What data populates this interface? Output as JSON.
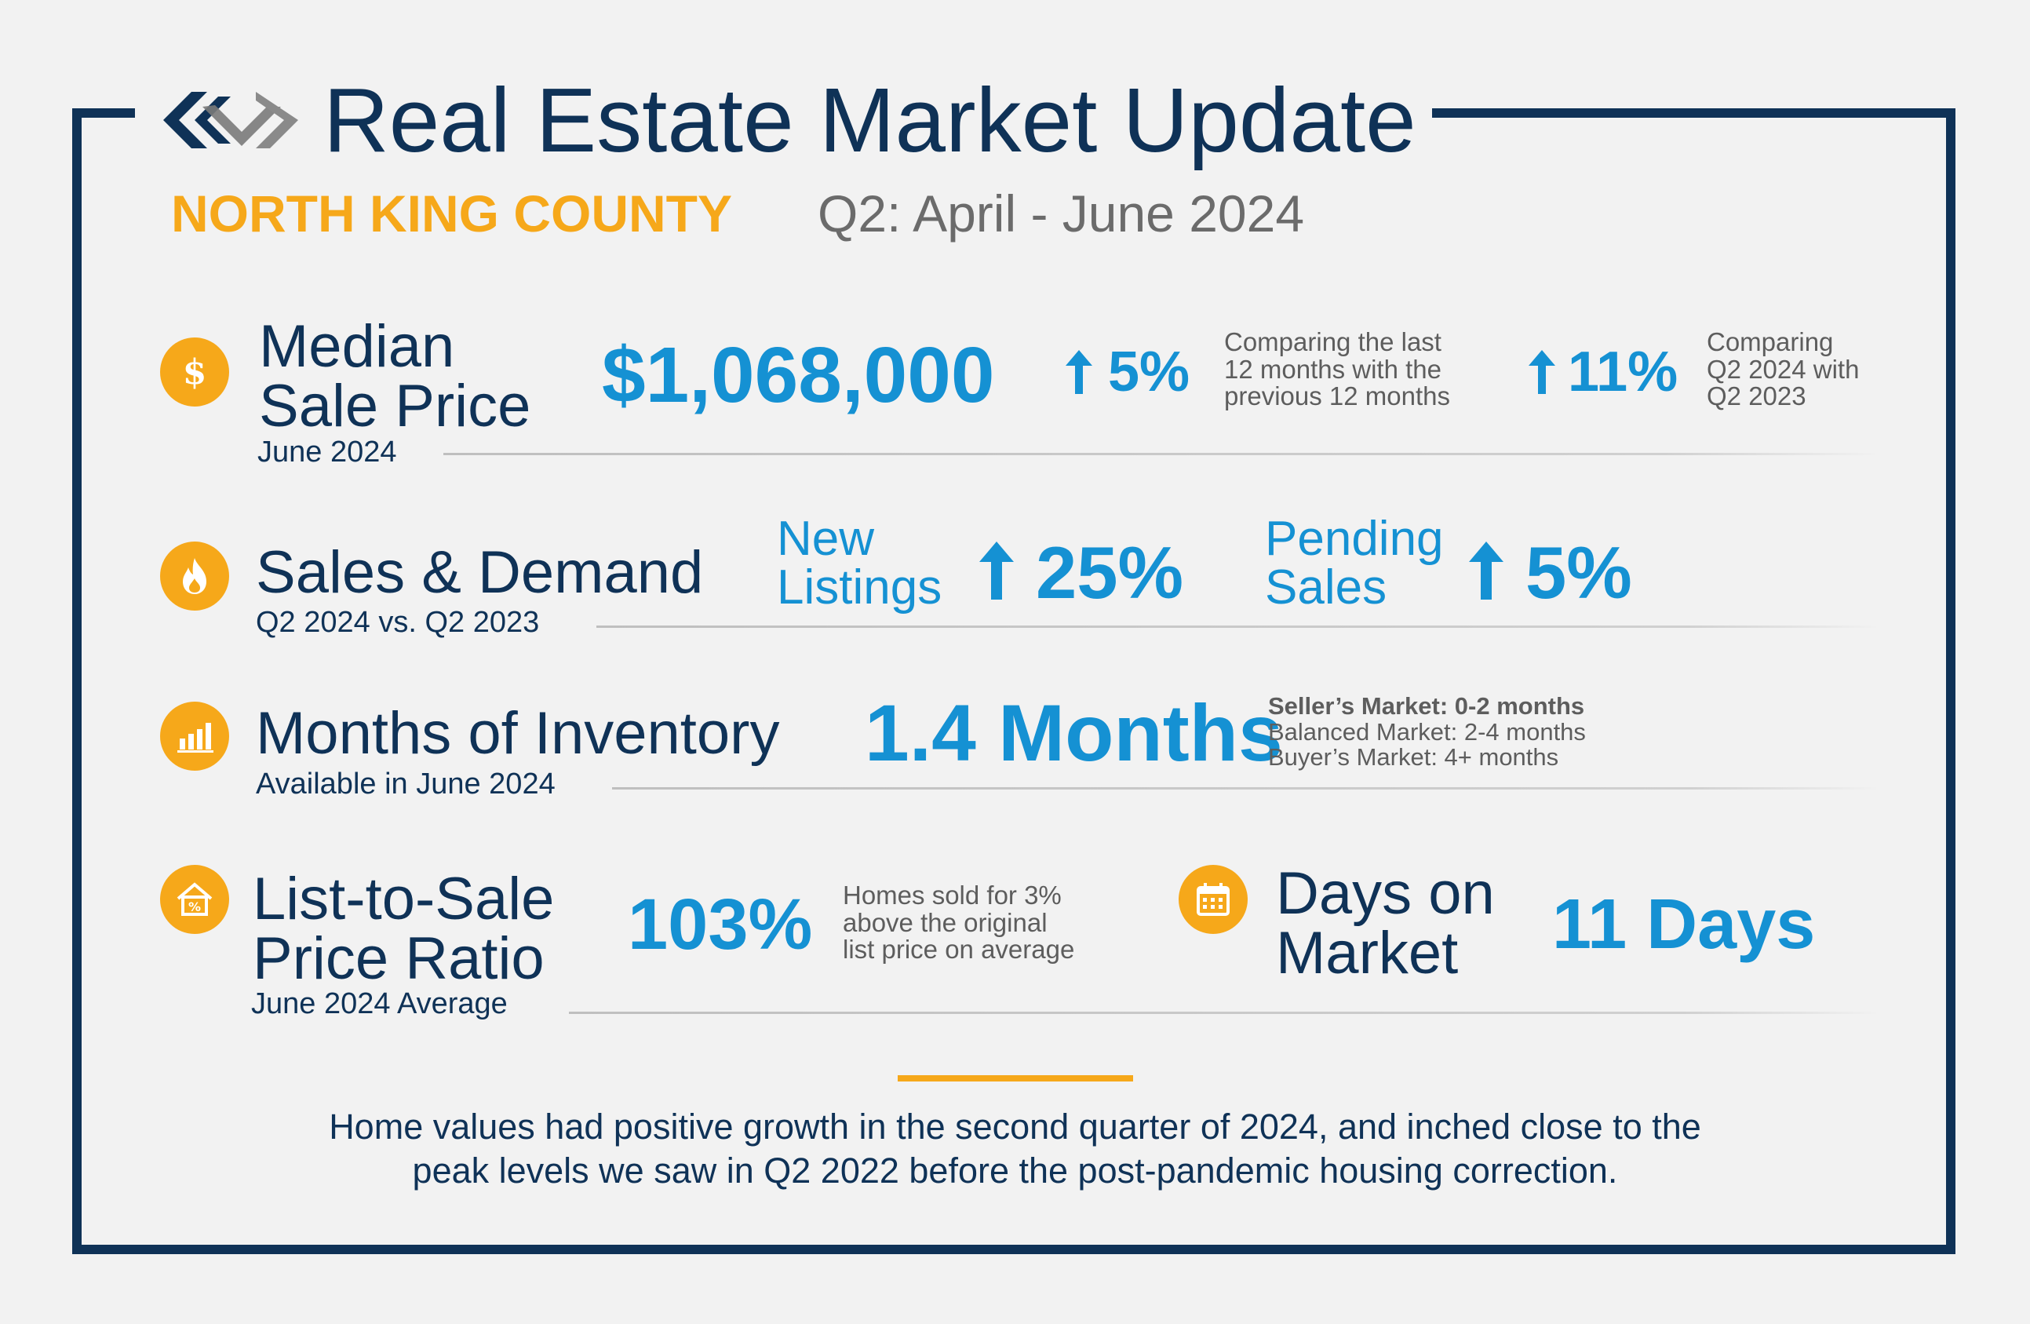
{
  "header": {
    "title": "Real Estate Market Update",
    "region": "NORTH KING COUNTY",
    "period": "Q2: April - June 2024"
  },
  "median_sale_price": {
    "label_line1": "Median",
    "label_line2": "Sale Price",
    "sub": "June 2024",
    "value": "$1,068,000",
    "change1": "5%",
    "change1_note_line1": "Comparing the last",
    "change1_note_line2": "12 months with the",
    "change1_note_line3": "previous 12 months",
    "change2": "11%",
    "change2_note_line1": "Comparing",
    "change2_note_line2": "Q2 2024 with",
    "change2_note_line3": "Q2 2023"
  },
  "sales_demand": {
    "label": "Sales & Demand",
    "sub": "Q2 2024 vs. Q2 2023",
    "new_listings_line1": "New",
    "new_listings_line2": "Listings",
    "new_listings_change": "25%",
    "pending_line1": "Pending",
    "pending_line2": "Sales",
    "pending_change": "5%"
  },
  "inventory": {
    "label": "Months of Inventory",
    "sub": "Available in June 2024",
    "value": "1.4 Months",
    "legend_line1": "Seller’s Market: 0-2 months",
    "legend_line2": "Balanced Market: 2-4 months",
    "legend_line3": "Buyer’s Market: 4+ months"
  },
  "list_to_sale": {
    "label_line1": "List-to-Sale",
    "label_line2": "Price Ratio",
    "sub": "June 2024 Average",
    "value": "103%",
    "note_line1": "Homes sold for 3%",
    "note_line2": "above the original",
    "note_line3": "list price on average"
  },
  "days_on_market": {
    "label_line1": "Days on",
    "label_line2": "Market",
    "value": "11 Days"
  },
  "summary": {
    "line1": "Home values had positive growth in the second quarter of 2024, and inched close to the",
    "line2": "peak levels we saw in Q2 2022 before the post-pandemic housing correction."
  },
  "icons": {
    "median_sale_price": "dollar-icon",
    "sales_demand": "flame-icon",
    "inventory": "bar-chart-icon",
    "list_to_sale": "house-percent-icon",
    "days_on_market": "calendar-icon",
    "change_direction": "arrow-up-icon"
  },
  "colors": {
    "navy": "#0f3257",
    "blue": "#1591d3",
    "gold": "#f6a81a",
    "gray_text": "#5d5d5d"
  }
}
